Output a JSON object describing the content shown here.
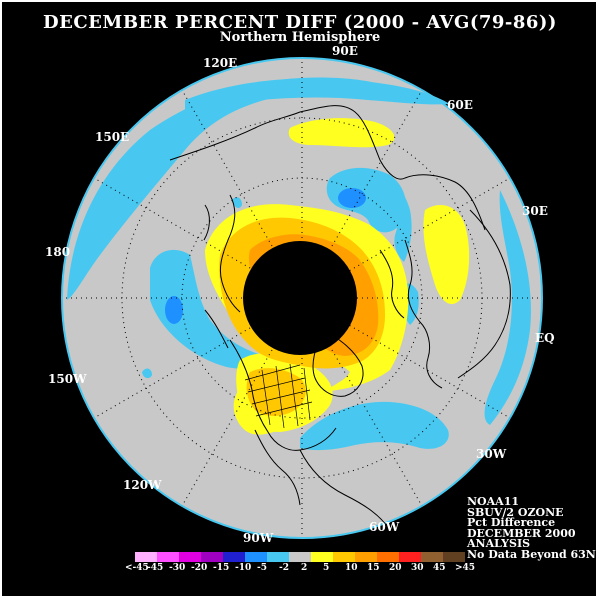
{
  "title": "DECEMBER PERCENT DIFF (2000 - AVG(79-86))",
  "subtitle": "Northern Hemisphere",
  "longitude_labels": {
    "lon_90e": "90E",
    "lon_120e": "120E",
    "lon_60e": "60E",
    "lon_150e": "150E",
    "lon_30e": "30E",
    "lon_180": "180",
    "lon_eq": "EQ",
    "lon_150w": "150W",
    "lon_30w": "30W",
    "lon_120w": "120W",
    "lon_60w": "60W",
    "lon_90w": "90W"
  },
  "info": {
    "line1": "NOAA11",
    "line2": "SBUV/2 OZONE",
    "line3": "Pct Difference",
    "line4": "DECEMBER 2000",
    "line5": "ANALYSIS",
    "line6": "No Data Beyond 63N"
  },
  "legend": {
    "colors": [
      "#ffb0ff",
      "#ff50ff",
      "#e000e0",
      "#a000c0",
      "#2020d0",
      "#1e90ff",
      "#48c8f0",
      "#c8c8c8",
      "#ffff20",
      "#ffc800",
      "#ffa000",
      "#ff7000",
      "#ff2020",
      "#906030",
      "#604020"
    ],
    "labels": [
      "<-45",
      "-45",
      "-30",
      "-20",
      "-15",
      "-10",
      "-5",
      "-2",
      "2",
      "5",
      "10",
      "15",
      "20",
      "30",
      "45",
      ">45"
    ]
  },
  "colors": {
    "background": "#000000",
    "disk": "#c8c8c8",
    "blue": "#48c8f0",
    "dark_blue": "#1e90ff",
    "yellow": "#ffff20",
    "gold": "#ffc800",
    "orange": "#ffa000",
    "coast": "#000000",
    "border": "#48c8f0"
  }
}
